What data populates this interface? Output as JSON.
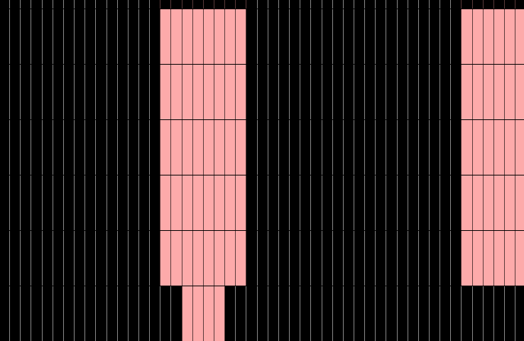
{
  "colors": {
    "background": "#000000",
    "cell_fill": "#fdaaaa",
    "line_on_dark": "#8a8a8a",
    "line_on_fill": "#5a3b3b"
  },
  "grid": {
    "columns": 49,
    "rows": 6,
    "filled_cells": [
      {
        "row": 0,
        "cols": [
          15,
          16,
          17,
          18,
          19,
          20,
          21,
          22,
          43,
          44,
          45,
          46,
          47,
          48
        ]
      },
      {
        "row": 1,
        "cols": [
          15,
          16,
          17,
          18,
          19,
          20,
          21,
          22,
          43,
          44,
          45,
          46,
          47,
          48
        ]
      },
      {
        "row": 2,
        "cols": [
          15,
          16,
          17,
          18,
          19,
          20,
          21,
          22,
          43,
          44,
          45,
          46,
          47,
          48
        ]
      },
      {
        "row": 3,
        "cols": [
          15,
          16,
          17,
          18,
          19,
          20,
          21,
          22,
          43,
          44,
          45,
          46,
          47,
          48
        ]
      },
      {
        "row": 4,
        "cols": [
          15,
          16,
          17,
          18,
          19,
          20,
          21,
          22,
          43,
          44,
          45,
          46,
          47,
          48
        ]
      },
      {
        "row": 5,
        "cols": [
          17,
          18,
          19,
          20
        ]
      }
    ]
  }
}
